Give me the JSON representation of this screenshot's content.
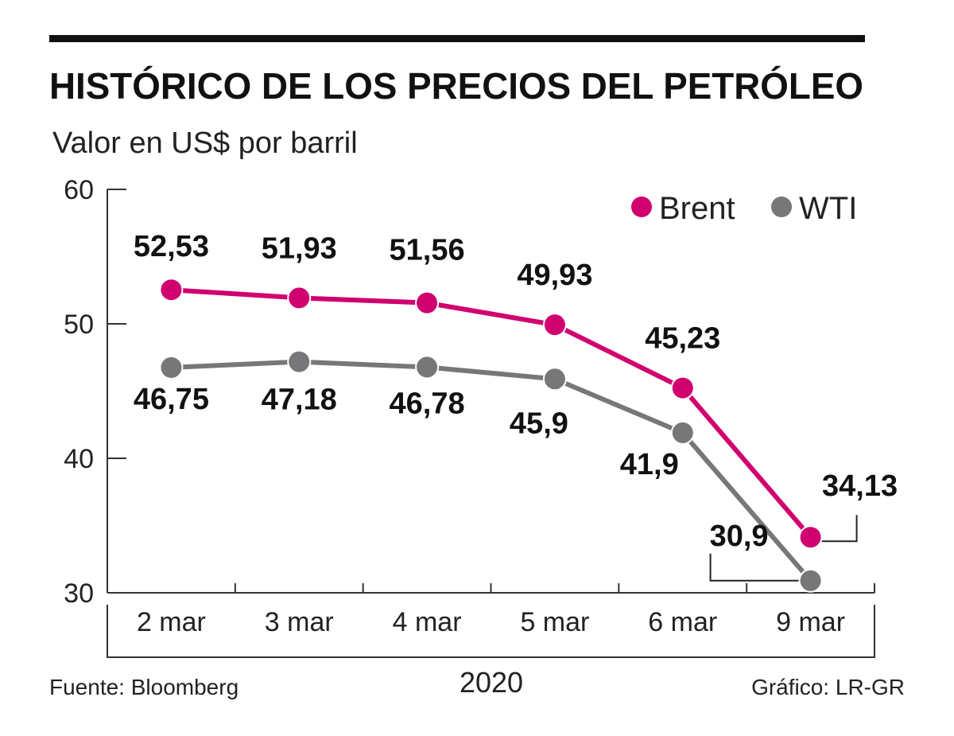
{
  "chart_data": {
    "type": "line",
    "title": "HISTÓRICO DE LOS PRECIOS DEL PETRÓLEO",
    "subtitle": "Valor en US$ por barril",
    "categories": [
      "2 mar",
      "3 mar",
      "4 mar",
      "5 mar",
      "6 mar",
      "9 mar"
    ],
    "series": [
      {
        "name": "Brent",
        "color": "#d0006f",
        "values": [
          52.53,
          51.93,
          51.56,
          49.93,
          45.23,
          34.13
        ],
        "labels": [
          "52,53",
          "51,93",
          "51,56",
          "49,93",
          "45,23",
          "34,13"
        ]
      },
      {
        "name": "WTI",
        "color": "#77777a",
        "values": [
          46.75,
          47.18,
          46.78,
          45.9,
          41.9,
          30.9
        ],
        "labels": [
          "46,75",
          "47,18",
          "46,78",
          "45,9",
          "41,9",
          "30,9"
        ]
      }
    ],
    "ylim": [
      30,
      60
    ],
    "yticks": [
      30,
      40,
      50,
      60
    ],
    "xlabel": "2020",
    "ylabel": "",
    "legend_position": "top-right",
    "grid": false
  },
  "footer": {
    "source": "Fuente: Bloomberg",
    "credit": "Gráfico: LR-GR"
  }
}
